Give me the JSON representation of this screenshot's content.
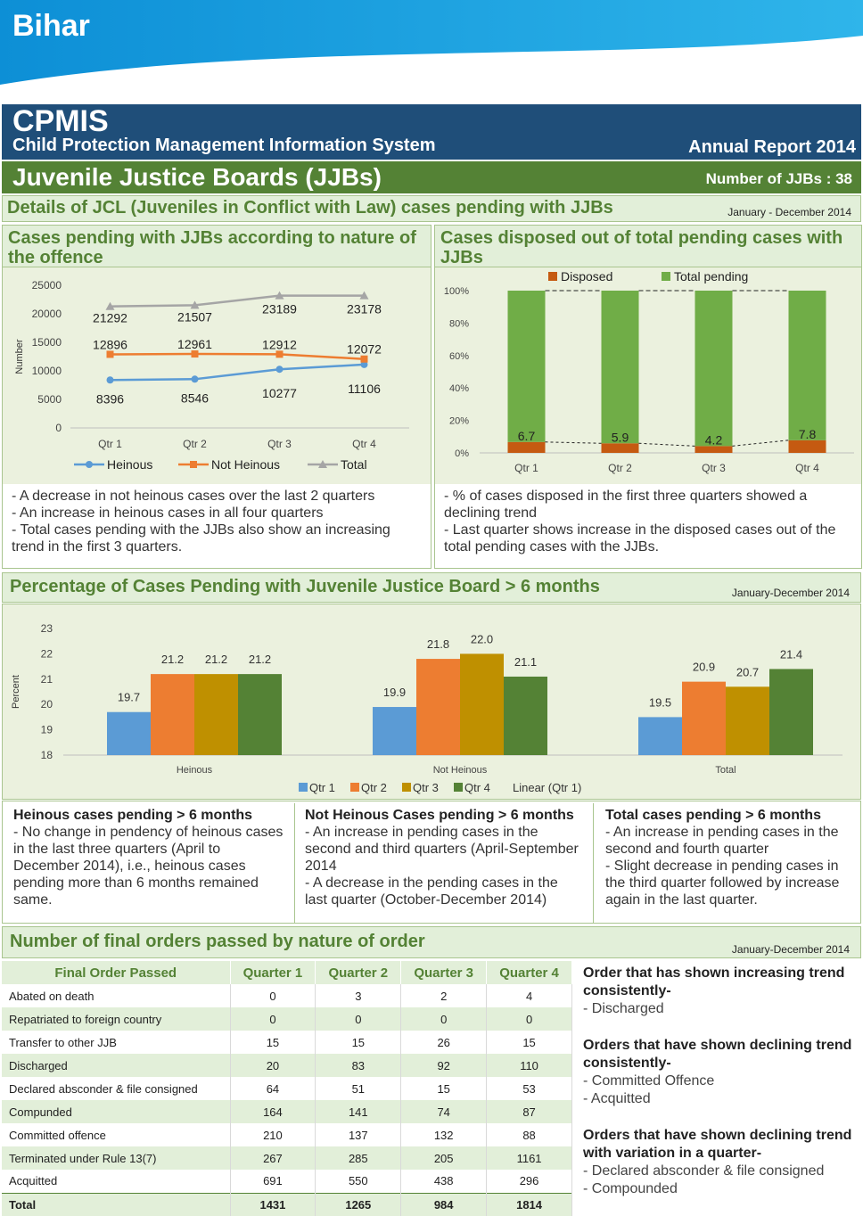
{
  "header": {
    "state": "Bihar",
    "title": "CPMIS",
    "subtitle": "Child Protection Management Information System",
    "report": "Annual Report 2014",
    "section": "Juvenile Justice Boards (JJBs)",
    "jjb_count": "Number of JJBs : 38",
    "colors": {
      "banner": "#1aa3e0",
      "navy": "#1f4e79",
      "green": "#548235"
    }
  },
  "jcl": {
    "title": "Details of JCL (Juveniles in Conflict with Law) cases pending with JJBs",
    "period": "January - December 2014"
  },
  "panel_left": {
    "title": "Cases pending with JJBs according to nature of the offence",
    "notes": [
      "- A decrease in not heinous cases over the last 2 quarters",
      "- An increase in heinous cases in all four quarters",
      "- Total cases pending with the JJBs also show an increasing trend in the first 3 quarters."
    ]
  },
  "panel_right": {
    "title": "Cases disposed out of total pending cases with JJBs",
    "notes": [
      "- % of cases disposed in the first three quarters showed a declining trend",
      "- Last quarter shows increase in the disposed cases out of the total pending cases with the JJBs."
    ]
  },
  "pct6": {
    "title": "Percentage of Cases Pending with Juvenile Justice Board > 6 months",
    "period": "January-December 2014",
    "notes": [
      {
        "heading": "Heinous cases pending > 6 months",
        "lines": [
          "- No change in pendency of heinous cases in the last three quarters (April to December 2014), i.e., heinous cases pending more than 6 months remained same."
        ]
      },
      {
        "heading": "Not Heinous Cases pending > 6 months",
        "lines": [
          "- An increase in pending cases in the second and third quarters (April-September 2014",
          "- A decrease in the pending cases in the last quarter (October-December 2014)"
        ]
      },
      {
        "heading": "Total cases pending > 6 months",
        "lines": [
          "- An increase in pending cases in the second and fourth quarter",
          "- Slight decrease in pending cases in the third quarter followed by increase again in the last quarter."
        ]
      }
    ]
  },
  "orders": {
    "title": "Number of final orders passed by nature of order",
    "period": "January-December 2014",
    "columns": [
      "Final Order Passed",
      "Quarter 1",
      "Quarter 2",
      "Quarter 3",
      "Quarter 4"
    ],
    "rows": [
      [
        "Abated on death",
        "0",
        "3",
        "2",
        "4"
      ],
      [
        "Repatriated to foreign country",
        "0",
        "0",
        "0",
        "0"
      ],
      [
        "Transfer to other JJB",
        "15",
        "15",
        "26",
        "15"
      ],
      [
        "Discharged",
        "20",
        "83",
        "92",
        "110"
      ],
      [
        "Declared absconder & file consigned",
        "64",
        "51",
        "15",
        "53"
      ],
      [
        "Compunded",
        "164",
        "141",
        "74",
        "87"
      ],
      [
        "Committed offence",
        "210",
        "137",
        "132",
        "88"
      ],
      [
        "Terminated under Rule 13(7)",
        "267",
        "285",
        "205",
        "1161"
      ],
      [
        "Acquitted",
        "691",
        "550",
        "438",
        "296"
      ]
    ],
    "total": [
      "Total",
      "1431",
      "1265",
      "984",
      "1814"
    ],
    "notes": [
      {
        "heading": "Order that has shown increasing trend consistently-",
        "items": [
          "- Discharged"
        ]
      },
      {
        "heading": "Orders that have shown declining trend consistently-",
        "items": [
          "- Committed Offence",
          "- Acquitted"
        ]
      },
      {
        "heading": "Orders that have shown declining trend with variation in a quarter-",
        "items": [
          "- Declared absconder & file consigned",
          "- Compounded"
        ]
      }
    ]
  },
  "chart_data": [
    {
      "type": "line",
      "categories": [
        "Qtr 1",
        "Qtr 2",
        "Qtr 3",
        "Qtr 4"
      ],
      "ylabel": "Number",
      "ylim": [
        0,
        25000
      ],
      "yticks": [
        0,
        5000,
        10000,
        15000,
        20000,
        25000
      ],
      "series": [
        {
          "name": "Heinous",
          "values": [
            8396,
            8546,
            10277,
            11106
          ],
          "color": "#5b9bd5"
        },
        {
          "name": "Not Heinous",
          "values": [
            12896,
            12961,
            12912,
            12072
          ],
          "color": "#ed7d31"
        },
        {
          "name": "Total",
          "values": [
            21292,
            21507,
            23189,
            23178
          ],
          "color": "#a5a5a5"
        }
      ],
      "legend": "bottom"
    },
    {
      "type": "bar",
      "stacked": true,
      "categories": [
        "Qtr 1",
        "Qtr 2",
        "Qtr 3",
        "Qtr 4"
      ],
      "ylim": [
        0,
        100
      ],
      "yticks": [
        "0%",
        "20%",
        "40%",
        "60%",
        "80%",
        "100%"
      ],
      "series": [
        {
          "name": "Disposed",
          "values": [
            6.7,
            5.9,
            4.2,
            7.8
          ],
          "color": "#c55a11"
        },
        {
          "name": "Total pending",
          "values": [
            93.3,
            94.1,
            95.8,
            92.2
          ],
          "color": "#70ad47"
        }
      ],
      "legend": "top"
    },
    {
      "type": "bar",
      "categories": [
        "Heinous",
        "Not Heinous",
        "Total"
      ],
      "ylabel": "Percent",
      "ylim": [
        18,
        23
      ],
      "yticks": [
        18,
        19,
        20,
        21,
        22,
        23
      ],
      "series": [
        {
          "name": "Qtr 1",
          "values": [
            19.7,
            19.9,
            19.5
          ],
          "color": "#5b9bd5"
        },
        {
          "name": "Qtr 2",
          "values": [
            21.2,
            21.8,
            20.9
          ],
          "color": "#ed7d31"
        },
        {
          "name": "Qtr 3",
          "values": [
            21.2,
            22.0,
            20.7
          ],
          "color": "#bf9000"
        },
        {
          "name": "Qtr 4",
          "values": [
            21.2,
            21.1,
            21.4
          ],
          "color": "#548235"
        }
      ],
      "legend_extra": "Linear (Qtr 1)",
      "legend": "bottom"
    }
  ]
}
